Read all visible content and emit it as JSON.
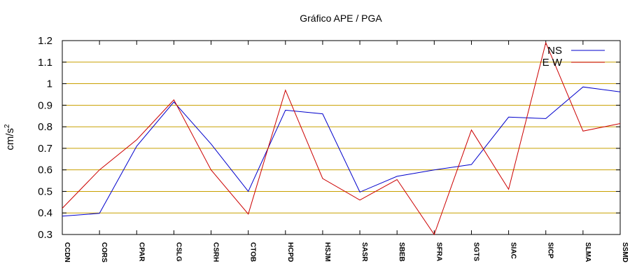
{
  "chart_data": {
    "type": "line",
    "title": "Gráfico  APE / PGA",
    "ylabel": "cm/s",
    "ylabel_exponent": "2",
    "xlabel": "",
    "categories": [
      "CCDN",
      "CORS",
      "CPAR",
      "CSLG",
      "CSRH",
      "CTOB",
      "HCPD",
      "HSJM",
      "SASR",
      "SBEB",
      "SFRA",
      "SGTS",
      "SIAC",
      "SICP",
      "SLMA",
      "SSMD"
    ],
    "ylim": [
      0.3,
      1.2
    ],
    "yticks": [
      "0.3",
      "0.4",
      "0.5",
      "0.6",
      "0.7",
      "0.8",
      "0.9",
      "1",
      "1.1",
      "1.2"
    ],
    "grid": "horizontal",
    "legend_position": "top-right",
    "series": [
      {
        "name": "NS",
        "color": "#0000cc",
        "values": [
          0.385,
          0.398,
          0.71,
          0.915,
          0.72,
          0.5,
          0.877,
          0.86,
          0.497,
          0.57,
          0.6,
          0.625,
          0.845,
          0.838,
          0.985,
          0.962
        ]
      },
      {
        "name": "E W",
        "color": "#cc0000",
        "values": [
          0.422,
          0.6,
          0.74,
          0.925,
          0.6,
          0.395,
          0.97,
          0.56,
          0.46,
          0.555,
          0.3,
          0.785,
          0.51,
          1.19,
          0.78,
          0.815
        ]
      }
    ],
    "colors": {
      "grid": "#c8a000",
      "axis": "#000000"
    }
  }
}
